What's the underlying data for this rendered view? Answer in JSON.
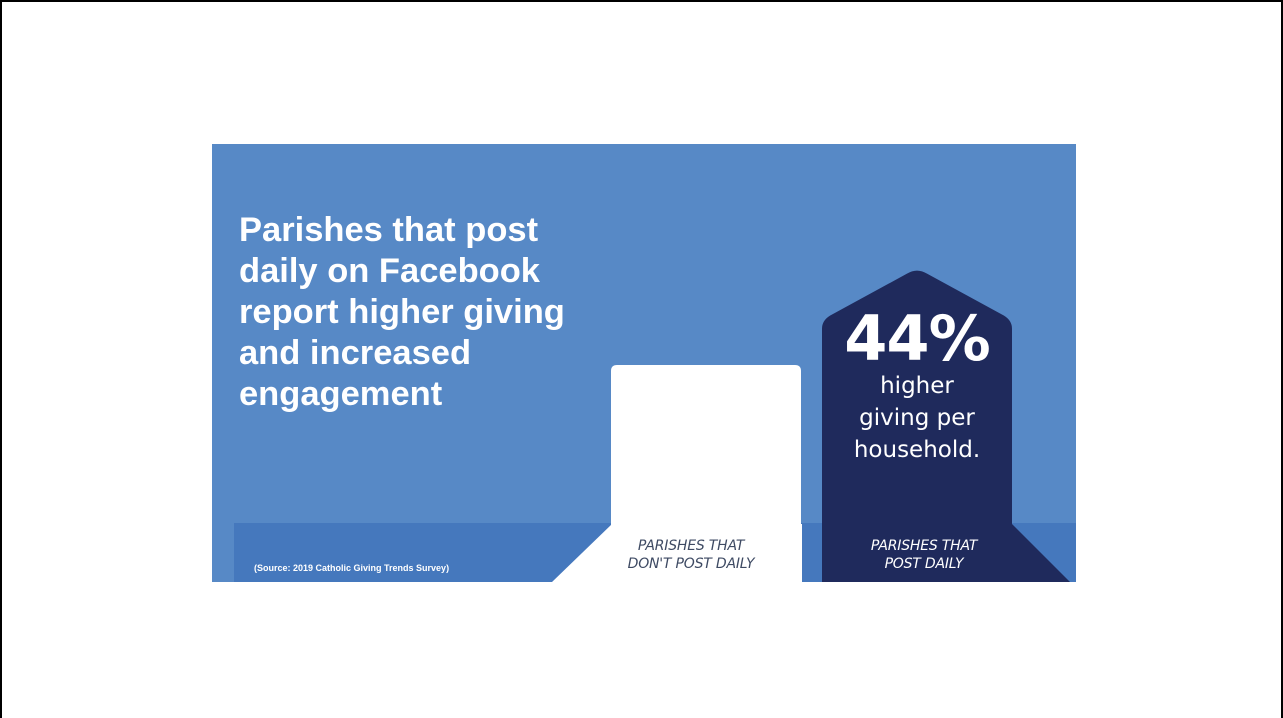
{
  "headline": "Parishes that post daily on Facebook report higher giving and increased engagement",
  "source_note": "(Source: 2019 Catholic Giving Trends Survey)",
  "colors": {
    "background": "#5789c6",
    "band": "#4578bd",
    "white_bar": "#ffffff",
    "navy_bar": "#1f2a5c"
  },
  "chart_data": {
    "type": "bar",
    "categories": [
      "PARISHES THAT DON'T POST DAILY",
      "PARISHES THAT POST DAILY"
    ],
    "category_lines": [
      [
        "PARISHES THAT",
        "DON'T POST DAILY"
      ],
      [
        "PARISHES THAT",
        "POST DAILY"
      ]
    ],
    "relative_values": [
      1.0,
      1.44
    ],
    "highlight": {
      "value": "44%",
      "caption_lines": [
        "higher",
        "giving per",
        "household."
      ]
    }
  }
}
